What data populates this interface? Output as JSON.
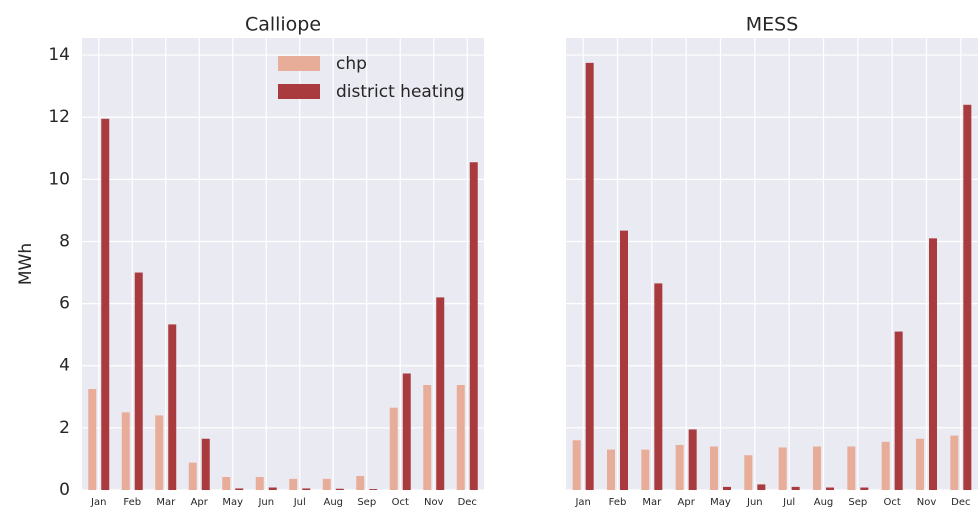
{
  "chart_data": [
    {
      "type": "bar",
      "title": "Calliope",
      "ylabel": "MWh",
      "categories": [
        "Jan",
        "Feb",
        "Mar",
        "Apr",
        "May",
        "Jun",
        "Jul",
        "Aug",
        "Sep",
        "Oct",
        "Nov",
        "Dec"
      ],
      "series": [
        {
          "name": "chp",
          "color": "#e8ad99",
          "values": [
            3.25,
            2.5,
            2.4,
            0.88,
            0.42,
            0.42,
            0.36,
            0.36,
            0.45,
            2.65,
            3.38,
            3.38
          ]
        },
        {
          "name": "district heating",
          "color": "#a93a3e",
          "values": [
            11.95,
            7.0,
            5.33,
            1.65,
            0.05,
            0.08,
            0.05,
            0.04,
            0.03,
            3.75,
            6.2,
            10.55
          ]
        }
      ],
      "ylim": [
        0,
        14.55
      ],
      "yticks": [
        0,
        2,
        4,
        6,
        8,
        10,
        12,
        14
      ],
      "grid": true,
      "legend": "upper center",
      "ytick_labels": true
    },
    {
      "type": "bar",
      "title": "MESS",
      "categories": [
        "Jan",
        "Feb",
        "Mar",
        "Apr",
        "May",
        "Jun",
        "Jul",
        "Aug",
        "Sep",
        "Oct",
        "Nov",
        "Dec"
      ],
      "series": [
        {
          "name": "chp",
          "color": "#e8ad99",
          "values": [
            1.6,
            1.3,
            1.3,
            1.45,
            1.4,
            1.12,
            1.37,
            1.4,
            1.4,
            1.55,
            1.65,
            1.75
          ]
        },
        {
          "name": "district heating",
          "color": "#a93a3e",
          "values": [
            13.75,
            8.35,
            6.65,
            1.95,
            0.1,
            0.18,
            0.1,
            0.08,
            0.08,
            5.1,
            8.1,
            12.4
          ]
        }
      ],
      "ylim": [
        0,
        14.55
      ],
      "yticks": [
        0,
        2,
        4,
        6,
        8,
        10,
        12,
        14
      ],
      "grid": true,
      "ytick_labels": false
    }
  ]
}
